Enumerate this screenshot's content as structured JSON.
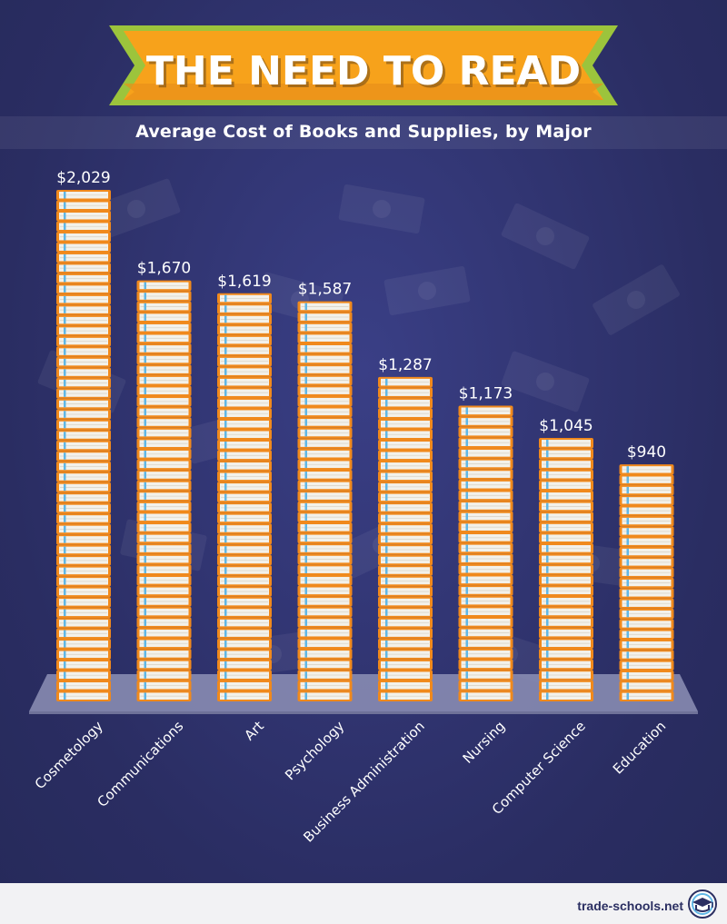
{
  "title": "THE NEED TO READ",
  "subtitle": "Average Cost of Books and Supplies, by Major",
  "footer": {
    "brand": "trade-schools.net",
    "logo_icon": "graduation-cap-book-icon"
  },
  "colors": {
    "background": "#2b2f62",
    "banner_orange": "#f7a21b",
    "banner_green": "#9cc43c",
    "book_cover": "#f0891c",
    "book_pages": "#f3f1ea",
    "bookmark": "#5fb7e6",
    "shelf": "#8d90b6"
  },
  "chart_data": {
    "type": "bar",
    "title": "Average Cost of Books and Supplies, by Major",
    "xlabel": "",
    "ylabel": "",
    "unit": "USD",
    "grid": false,
    "legend": "none",
    "ylim": [
      0,
      2100
    ],
    "categories": [
      "Cosmetology",
      "Communications",
      "Art",
      "Psychology",
      "Business Administration",
      "Nursing",
      "Computer Science",
      "Education"
    ],
    "values": [
      2029,
      1670,
      1619,
      1587,
      1287,
      1173,
      1045,
      940
    ],
    "labels": [
      "$2,029",
      "$1,670",
      "$1,619",
      "$1,587",
      "$1,287",
      "$1,173",
      "$1,045",
      "$940"
    ]
  }
}
